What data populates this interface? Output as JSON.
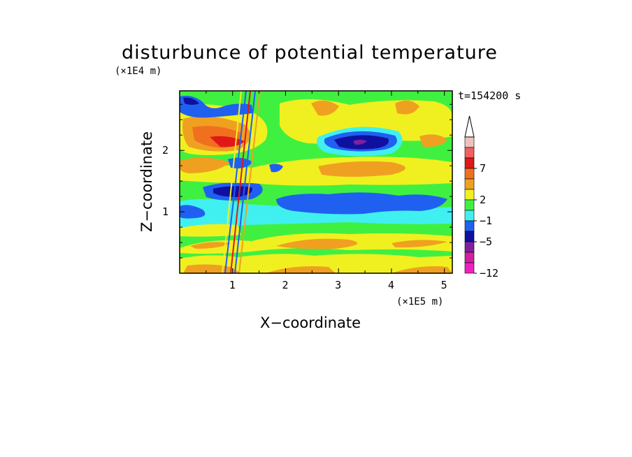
{
  "chart_data": {
    "type": "heatmap",
    "title": "disturbunce of potential temperature",
    "time_label": "t=154200 s",
    "xlabel": "X−coordinate",
    "ylabel": "Z−coordinate",
    "x_unit": "(×1E5 m)",
    "y_unit": "(×1E4 m)",
    "xlim": [
      0,
      5.15
    ],
    "ylim": [
      0,
      2.97
    ],
    "x_ticks": [
      "1",
      "2",
      "3",
      "4",
      "5"
    ],
    "y_ticks": [
      "1",
      "2"
    ],
    "x_tick_values": [
      1,
      2,
      3,
      4,
      5
    ],
    "y_tick_values": [
      1,
      2
    ],
    "colorbar": {
      "labels": [
        "7",
        "2",
        "−1",
        "−5",
        "−12"
      ],
      "colors": [
        "#f0c0c0",
        "#f06060",
        "#e01818",
        "#f07020",
        "#f0a020",
        "#f0f020",
        "#40f040",
        "#40f0f0",
        "#2060f0",
        "#1010a0",
        "#8020a0",
        "#d020a0",
        "#f020c0"
      ],
      "extend": "max"
    },
    "features": [
      {
        "x": 3.35,
        "z": 2.15,
        "sign": "negative",
        "description": "strong cold anomaly"
      },
      {
        "x": 3.3,
        "z": 1.15,
        "sign": "negative",
        "description": "cold band"
      },
      {
        "x": 1.0,
        "z": 2.1,
        "sign": "positive",
        "description": "warm anomaly"
      }
    ]
  }
}
